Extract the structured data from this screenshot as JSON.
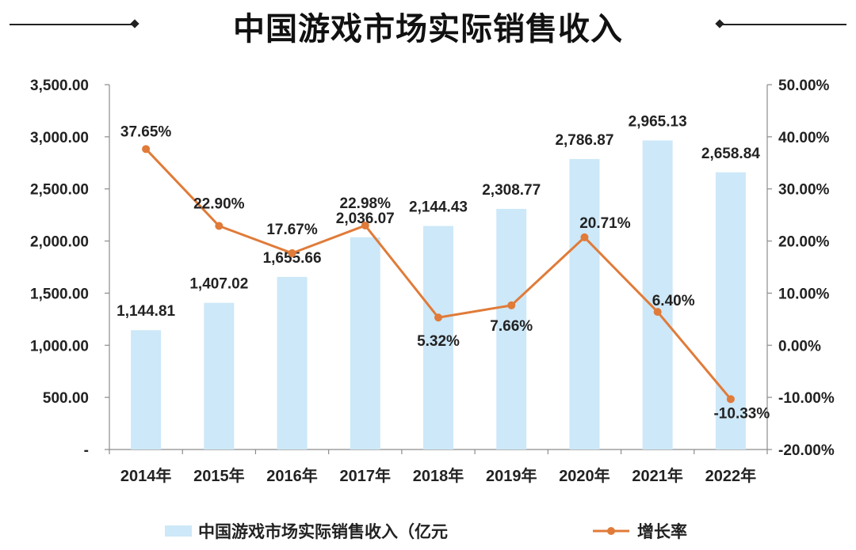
{
  "title": "中国游戏市场实际销售收入",
  "chart_data": {
    "type": "bar",
    "categories": [
      "2014年",
      "2015年",
      "2016年",
      "2017年",
      "2018年",
      "2019年",
      "2020年",
      "2021年",
      "2022年"
    ],
    "series": [
      {
        "name": "中国游戏市场实际销售收入（亿元",
        "type": "bar",
        "axis": "left",
        "color": "#cde8f8",
        "values": [
          1144.81,
          1407.02,
          1655.66,
          2036.07,
          2144.43,
          2308.77,
          2786.87,
          2965.13,
          2658.84
        ],
        "labels": [
          "1,144.81",
          "1,407.02",
          "1,655.66",
          "2,036.07",
          "2,144.43",
          "2,308.77",
          "2,786.87",
          "2,965.13",
          "2,658.84"
        ]
      },
      {
        "name": "增长率",
        "type": "line",
        "axis": "right",
        "color": "#e07b39",
        "values": [
          37.65,
          22.9,
          17.67,
          22.98,
          5.32,
          7.66,
          20.71,
          6.4,
          -10.33
        ],
        "labels": [
          "37.65%",
          "22.90%",
          "17.67%",
          "22.98%",
          "5.32%",
          "7.66%",
          "20.71%",
          "6.40%",
          "-10.33%"
        ]
      }
    ],
    "y_left": {
      "min": 0,
      "max": 3500,
      "ticks": [
        0,
        500,
        1000,
        1500,
        2000,
        2500,
        3000,
        3500
      ],
      "tick_labels": [
        "-",
        "500.00",
        "1,000.00",
        "1,500.00",
        "2,000.00",
        "2,500.00",
        "3,000.00",
        "3,500.00"
      ]
    },
    "y_right": {
      "min": -20,
      "max": 50,
      "ticks": [
        -20,
        -10,
        0,
        10,
        20,
        30,
        40,
        50
      ],
      "tick_labels": [
        "-20.00%",
        "-10.00%",
        "0.00%",
        "10.00%",
        "20.00%",
        "30.00%",
        "40.00%",
        "50.00%"
      ]
    },
    "grid": false,
    "legend_position": "bottom"
  }
}
